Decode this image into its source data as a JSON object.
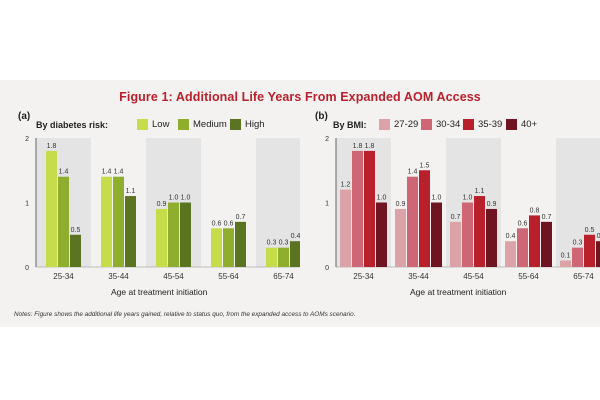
{
  "figure": {
    "title": "Figure 1: Additional Life Years From Expanded AOM Access",
    "notes": "Notes: Figure shows the additional life years gained, relative to status quo, from the expanded access to AOMs scenario."
  },
  "colors": {
    "title": "#b8202b",
    "panel_bg": "#f3f2f1",
    "shade_band": "#e4e4e4"
  },
  "chart_data": [
    {
      "type": "bar",
      "panel_label": "(a)",
      "legend_title": "By diabetes risk:",
      "xlabel": "Age at treatment initiation",
      "categories": [
        "25-34",
        "35-44",
        "45-54",
        "55-64",
        "65-74"
      ],
      "ylim": [
        0,
        2
      ],
      "yticks": [
        "0",
        "1",
        "2"
      ],
      "alternate_shading": true,
      "series": [
        {
          "name": "Low",
          "color": "#c6dc4a",
          "values": [
            1.8,
            1.4,
            0.9,
            0.6,
            0.3
          ],
          "labels": [
            "1.8",
            "1.4",
            "0.9",
            "0.6",
            "0.3"
          ]
        },
        {
          "name": "Medium",
          "color": "#8fae2e",
          "values": [
            1.4,
            1.4,
            1.0,
            0.6,
            0.3
          ],
          "labels": [
            "1.4",
            "1.4",
            "1.0",
            "0.6",
            "0.3"
          ]
        },
        {
          "name": "High",
          "color": "#5b7422",
          "values": [
            0.5,
            1.1,
            1.0,
            0.7,
            0.4
          ],
          "labels": [
            "0.5",
            "1.1",
            "1.0",
            "0.7",
            "0.4"
          ]
        }
      ]
    },
    {
      "type": "bar",
      "panel_label": "(b)",
      "legend_title": "By BMI:",
      "xlabel": "Age at treatment initiation",
      "categories": [
        "25-34",
        "35-44",
        "45-54",
        "55-64",
        "65-74"
      ],
      "ylim": [
        0,
        2
      ],
      "yticks": [
        "0",
        "1",
        "2"
      ],
      "alternate_shading": true,
      "series": [
        {
          "name": "27-29",
          "color": "#dba3a8",
          "values": [
            1.2,
            0.9,
            0.7,
            0.4,
            0.1
          ],
          "labels": [
            "1.2",
            "0.9",
            "0.7",
            "0.4",
            "0.1"
          ]
        },
        {
          "name": "30-34",
          "color": "#cf6676",
          "values": [
            1.8,
            1.4,
            1.0,
            0.6,
            0.3
          ],
          "labels": [
            "1.8",
            "1.4",
            "1.0",
            "0.6",
            "0.3"
          ]
        },
        {
          "name": "35-39",
          "color": "#b8202b",
          "values": [
            1.8,
            1.5,
            1.1,
            0.8,
            0.5
          ],
          "labels": [
            "1.8",
            "1.5",
            "1.1",
            "0.8",
            "0.5"
          ]
        },
        {
          "name": "40+",
          "color": "#6e1521",
          "values": [
            1.0,
            1.0,
            0.9,
            0.7,
            0.4
          ],
          "labels": [
            "1.0",
            "1.0",
            "0.9",
            "0.7",
            "0.4"
          ]
        }
      ]
    }
  ]
}
